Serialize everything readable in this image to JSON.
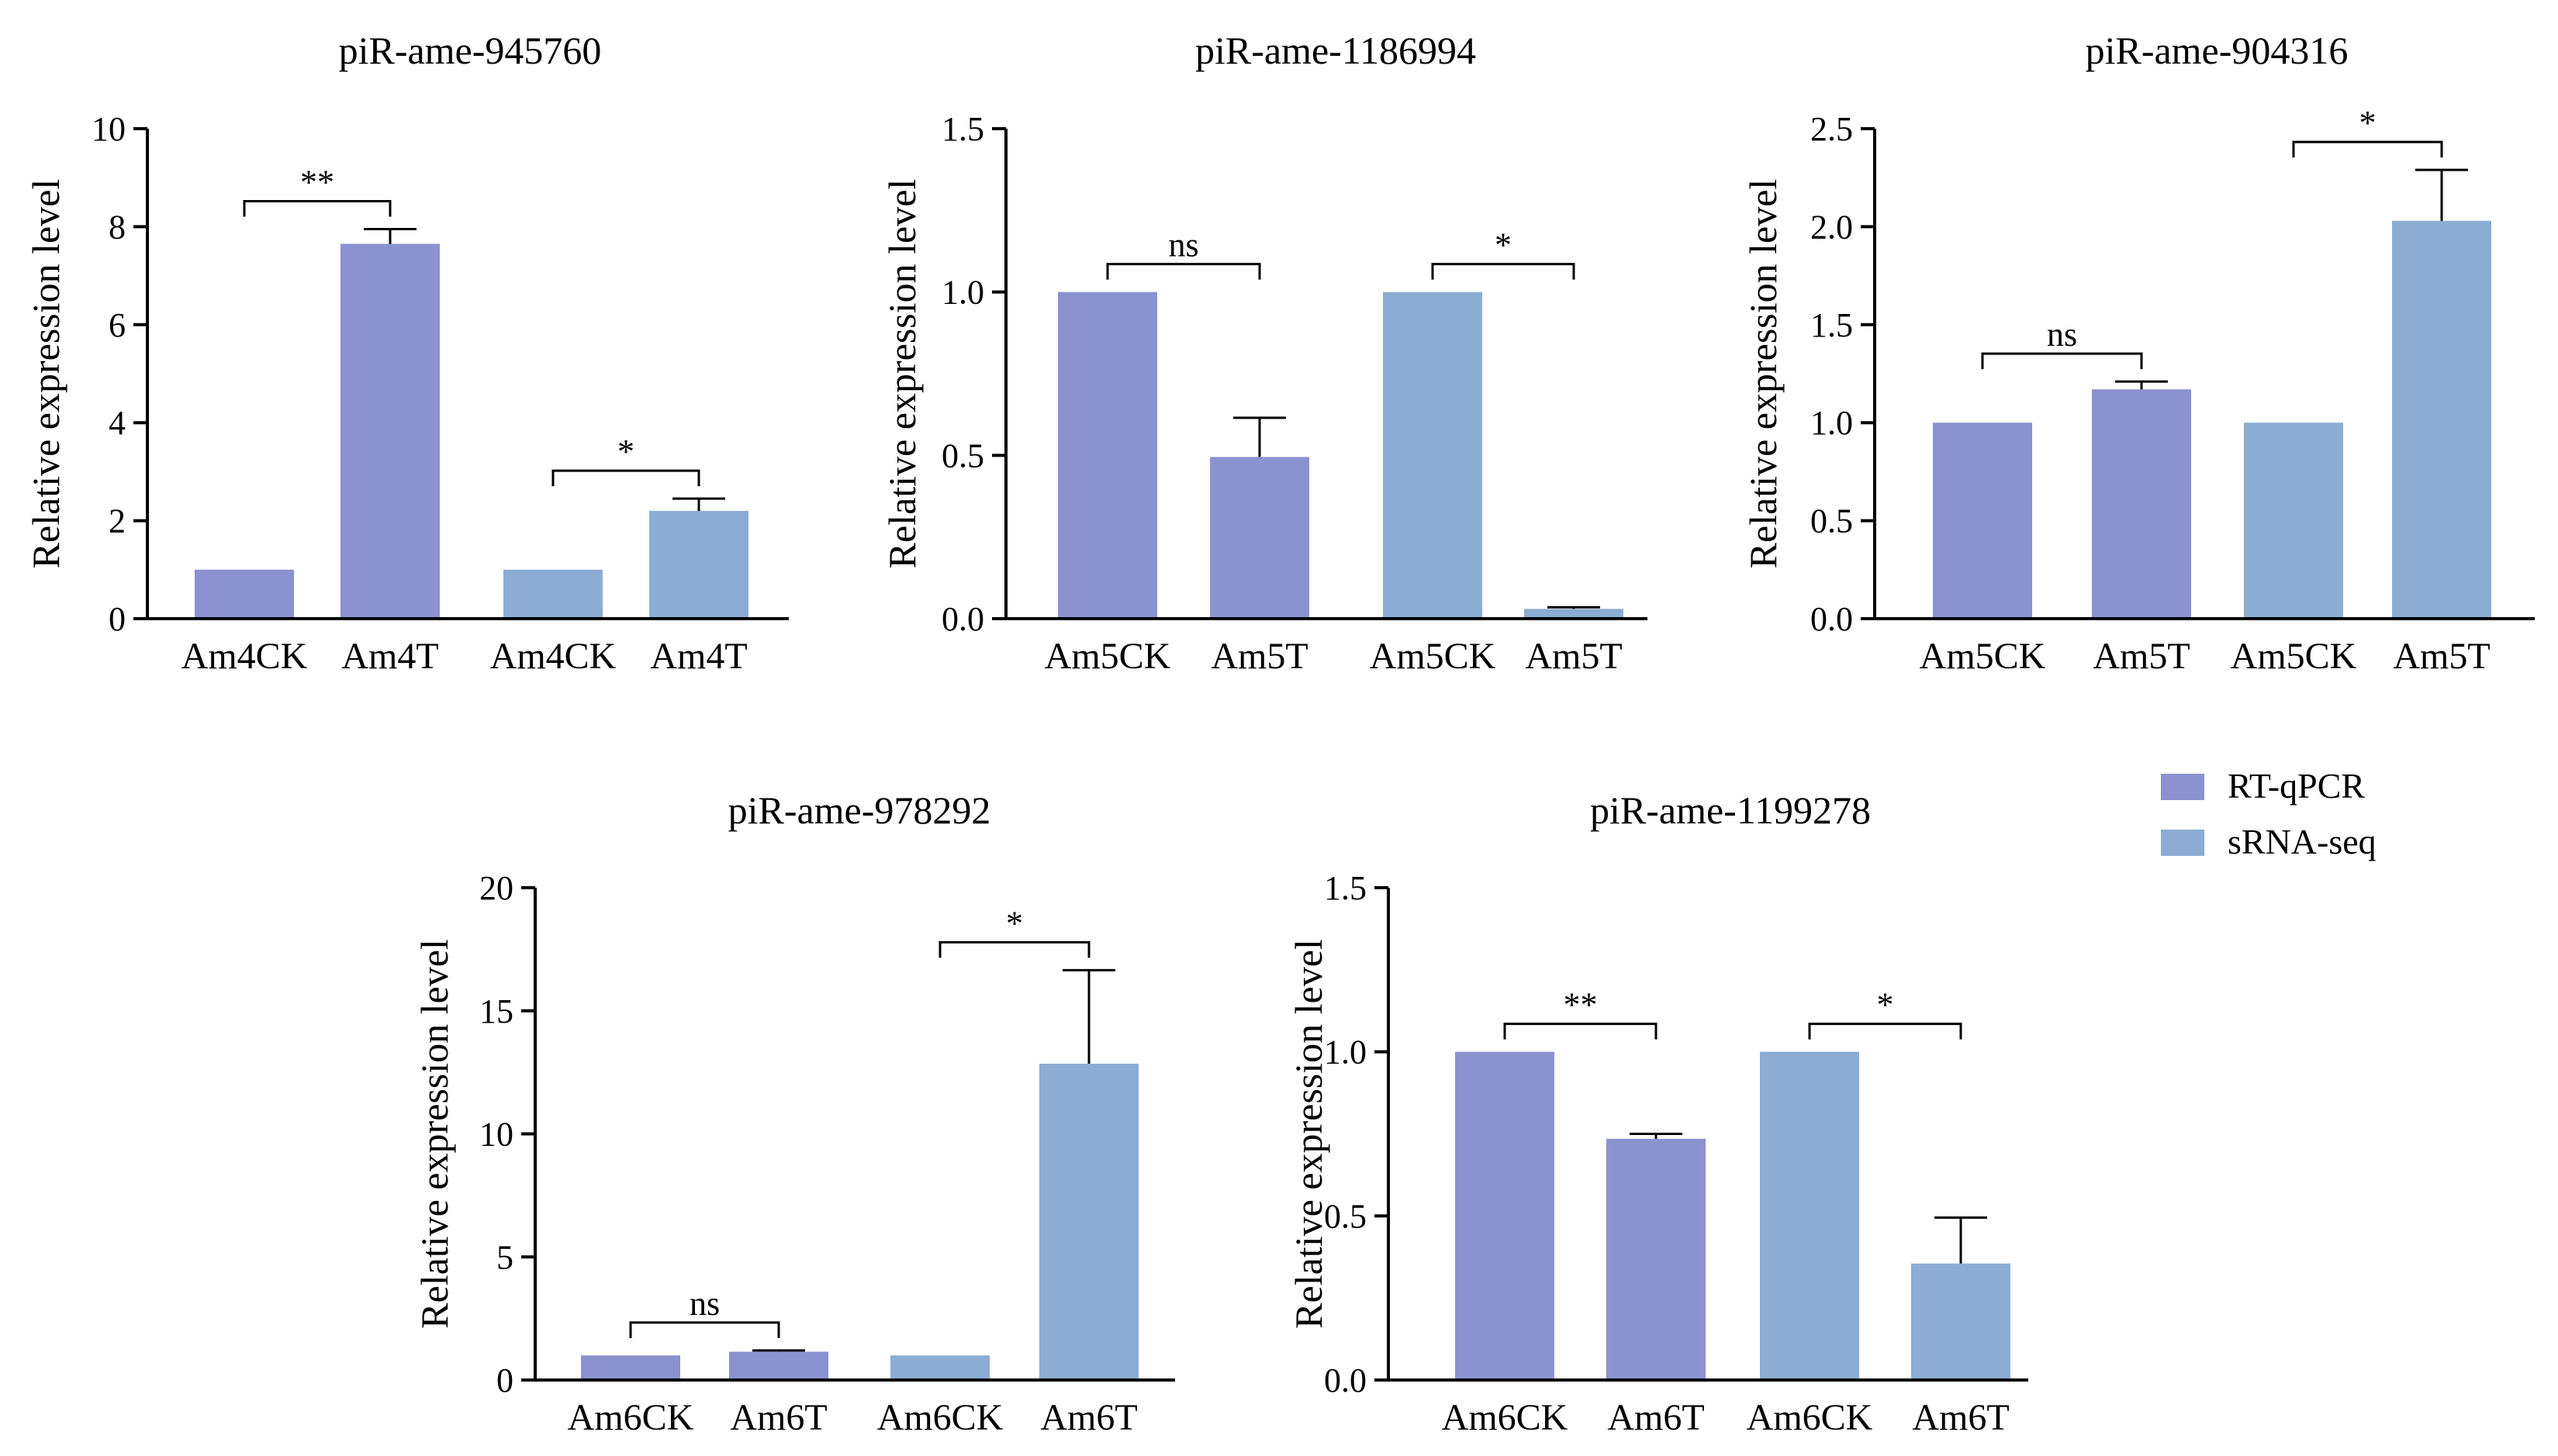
{
  "colors": {
    "rtqpcr": "#8b92cf",
    "srnaseq": "#8badd3",
    "axis": "#000000"
  },
  "legend": [
    {
      "label": "RT-qPCR",
      "color": "#8b92cf"
    },
    {
      "label": "sRNA-seq",
      "color": "#8badd3"
    }
  ],
  "chart_data": [
    {
      "type": "bar",
      "title": "piR-ame-945760",
      "ylabel": "Relative expression level",
      "ylim": [
        0,
        10
      ],
      "yticks": [
        0,
        2,
        4,
        6,
        8,
        10
      ],
      "ytick_labels": [
        "0",
        "2",
        "4",
        "6",
        "8",
        "10"
      ],
      "categories": [
        "Am4CK",
        "Am4T",
        "Am4CK",
        "Am4T"
      ],
      "series_of_bar": [
        "RT-qPCR",
        "RT-qPCR",
        "sRNA-seq",
        "sRNA-seq"
      ],
      "values": [
        1.0,
        7.65,
        1.0,
        2.2
      ],
      "errors": [
        0,
        0.3,
        0,
        0.25
      ],
      "significance": [
        {
          "pair": [
            0,
            1
          ],
          "label": "**"
        },
        {
          "pair": [
            2,
            3
          ],
          "label": "*"
        }
      ]
    },
    {
      "type": "bar",
      "title": "piR-ame-1186994",
      "ylabel": "Relative expression level",
      "ylim": [
        0,
        1.5
      ],
      "yticks": [
        0,
        0.5,
        1.0,
        1.5
      ],
      "ytick_labels": [
        "0.0",
        "0.5",
        "1.0",
        "1.5"
      ],
      "categories": [
        "Am5CK",
        "Am5T",
        "Am5CK",
        "Am5T"
      ],
      "series_of_bar": [
        "RT-qPCR",
        "RT-qPCR",
        "sRNA-seq",
        "sRNA-seq"
      ],
      "values": [
        1.0,
        0.495,
        1.0,
        0.03
      ],
      "errors": [
        0,
        0.12,
        0,
        0.005
      ],
      "significance": [
        {
          "pair": [
            0,
            1
          ],
          "label": "ns"
        },
        {
          "pair": [
            2,
            3
          ],
          "label": "*"
        }
      ]
    },
    {
      "type": "bar",
      "title": "piR-ame-904316",
      "ylabel": "Relative expression level",
      "ylim": [
        0,
        2.5
      ],
      "yticks": [
        0,
        0.5,
        1.0,
        1.5,
        2.0,
        2.5
      ],
      "ytick_labels": [
        "0.0",
        "0.5",
        "1.0",
        "1.5",
        "2.0",
        "2.5"
      ],
      "categories": [
        "Am5CK",
        "Am5T",
        "Am5CK",
        "Am5T"
      ],
      "series_of_bar": [
        "RT-qPCR",
        "RT-qPCR",
        "sRNA-seq",
        "sRNA-seq"
      ],
      "values": [
        1.0,
        1.17,
        1.0,
        2.03
      ],
      "errors": [
        0,
        0.04,
        0,
        0.26
      ],
      "significance": [
        {
          "pair": [
            0,
            1
          ],
          "label": "ns"
        },
        {
          "pair": [
            2,
            3
          ],
          "label": "*"
        }
      ]
    },
    {
      "type": "bar",
      "title": "piR-ame-978292",
      "ylabel": "Relative expression level",
      "ylim": [
        0,
        20
      ],
      "yticks": [
        0,
        5,
        10,
        15,
        20
      ],
      "ytick_labels": [
        "0",
        "5",
        "10",
        "15",
        "20"
      ],
      "categories": [
        "Am6CK",
        "Am6T",
        "Am6CK",
        "Am6T"
      ],
      "series_of_bar": [
        "RT-qPCR",
        "RT-qPCR",
        "sRNA-seq",
        "sRNA-seq"
      ],
      "values": [
        1.0,
        1.15,
        1.0,
        12.85
      ],
      "errors": [
        0,
        0.05,
        0,
        3.8
      ],
      "significance": [
        {
          "pair": [
            0,
            1
          ],
          "label": "ns"
        },
        {
          "pair": [
            2,
            3
          ],
          "label": "*"
        }
      ]
    },
    {
      "type": "bar",
      "title": "piR-ame-1199278",
      "ylabel": "Relative expression level",
      "ylim": [
        0,
        1.5
      ],
      "yticks": [
        0,
        0.5,
        1.0,
        1.5
      ],
      "ytick_labels": [
        "0.0",
        "0.5",
        "1.0",
        "1.5"
      ],
      "categories": [
        "Am6CK",
        "Am6T",
        "Am6CK",
        "Am6T"
      ],
      "series_of_bar": [
        "RT-qPCR",
        "RT-qPCR",
        "sRNA-seq",
        "sRNA-seq"
      ],
      "values": [
        1.0,
        0.735,
        1.0,
        0.355
      ],
      "errors": [
        0,
        0.015,
        0,
        0.14
      ],
      "significance": [
        {
          "pair": [
            0,
            1
          ],
          "label": "**"
        },
        {
          "pair": [
            2,
            3
          ],
          "label": "*"
        }
      ]
    }
  ]
}
